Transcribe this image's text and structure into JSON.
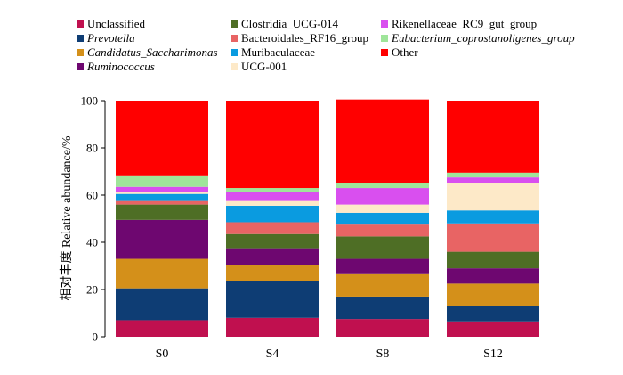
{
  "chart_data": {
    "type": "bar",
    "stacked": true,
    "ylabel": "相对丰度 Relative abundance/%",
    "xlabel": "",
    "ylim": [
      0,
      100
    ],
    "yticks": [
      0,
      20,
      40,
      60,
      80,
      100
    ],
    "categories": [
      "S0",
      "S4",
      "S8",
      "S12"
    ],
    "legend_position": "top",
    "series": [
      {
        "name": "Unclassified",
        "italic": false,
        "color": "#C0104F",
        "values": [
          7,
          8,
          7.5,
          6.5
        ]
      },
      {
        "name": "Prevotella",
        "italic": true,
        "color": "#0E3D74",
        "values": [
          13.5,
          15.5,
          9.5,
          6.5
        ]
      },
      {
        "name": "Candidatus_Saccharimonas",
        "italic": true,
        "color": "#D4901A",
        "values": [
          12.5,
          7,
          9.5,
          9.5
        ]
      },
      {
        "name": "Ruminococcus",
        "italic": true,
        "color": "#6E0770",
        "values": [
          16.5,
          7,
          6.5,
          6.5
        ]
      },
      {
        "name": "Clostridia_UCG-014",
        "italic": false,
        "color": "#4E6E25",
        "values": [
          6.5,
          6,
          9.5,
          7
        ]
      },
      {
        "name": "Bacteroidales_RF16_group",
        "italic": false,
        "color": "#E86464",
        "values": [
          1.5,
          5,
          5,
          12
        ]
      },
      {
        "name": "Muribaculaceae",
        "italic": false,
        "color": "#0A9BE0",
        "values": [
          3,
          7,
          5,
          5.5
        ]
      },
      {
        "name": "UCG-001",
        "italic": false,
        "color": "#FDE9C8",
        "values": [
          1,
          2,
          3.5,
          11.5
        ]
      },
      {
        "name": "Rikenellaceae_RC9_gut_group",
        "italic": false,
        "color": "#D94FEF",
        "values": [
          2,
          4,
          7,
          2.5
        ]
      },
      {
        "name": "Eubacterium_coprostanoligenes_group",
        "italic": true,
        "color": "#9FE59A",
        "values": [
          4.5,
          1.5,
          2,
          2
        ]
      },
      {
        "name": "Other",
        "italic": false,
        "color": "#FF0000",
        "values": [
          32,
          37,
          35.5,
          30.5
        ]
      }
    ]
  }
}
